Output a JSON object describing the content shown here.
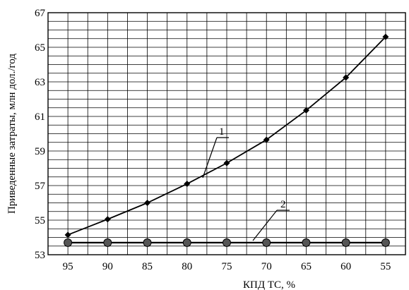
{
  "chart_data": {
    "type": "line",
    "title": "",
    "xlabel": "КПД ТС, %",
    "ylabel": "Приведенные затраты, млн дол./год",
    "x_ticks": [
      "95",
      "90",
      "85",
      "80",
      "75",
      "70",
      "65",
      "60",
      "55"
    ],
    "y_ticks": [
      "53",
      "55",
      "57",
      "59",
      "61",
      "63",
      "65",
      "67"
    ],
    "ylim": [
      53,
      67
    ],
    "x_reversed": true,
    "grid": true,
    "series": [
      {
        "name": "",
        "annotation": "1",
        "marker": "diamond",
        "x": [
          95,
          90,
          85,
          80,
          75,
          70,
          65,
          60,
          55
        ],
        "y": [
          54.15,
          55.05,
          56.0,
          57.1,
          58.3,
          59.65,
          61.35,
          63.25,
          65.6
        ]
      },
      {
        "name": "",
        "annotation": "2",
        "marker": "circle",
        "x": [
          95,
          90,
          85,
          80,
          75,
          70,
          65,
          60,
          55
        ],
        "y": [
          53.7,
          53.7,
          53.7,
          53.7,
          53.7,
          53.7,
          53.7,
          53.7,
          53.7
        ]
      }
    ]
  }
}
